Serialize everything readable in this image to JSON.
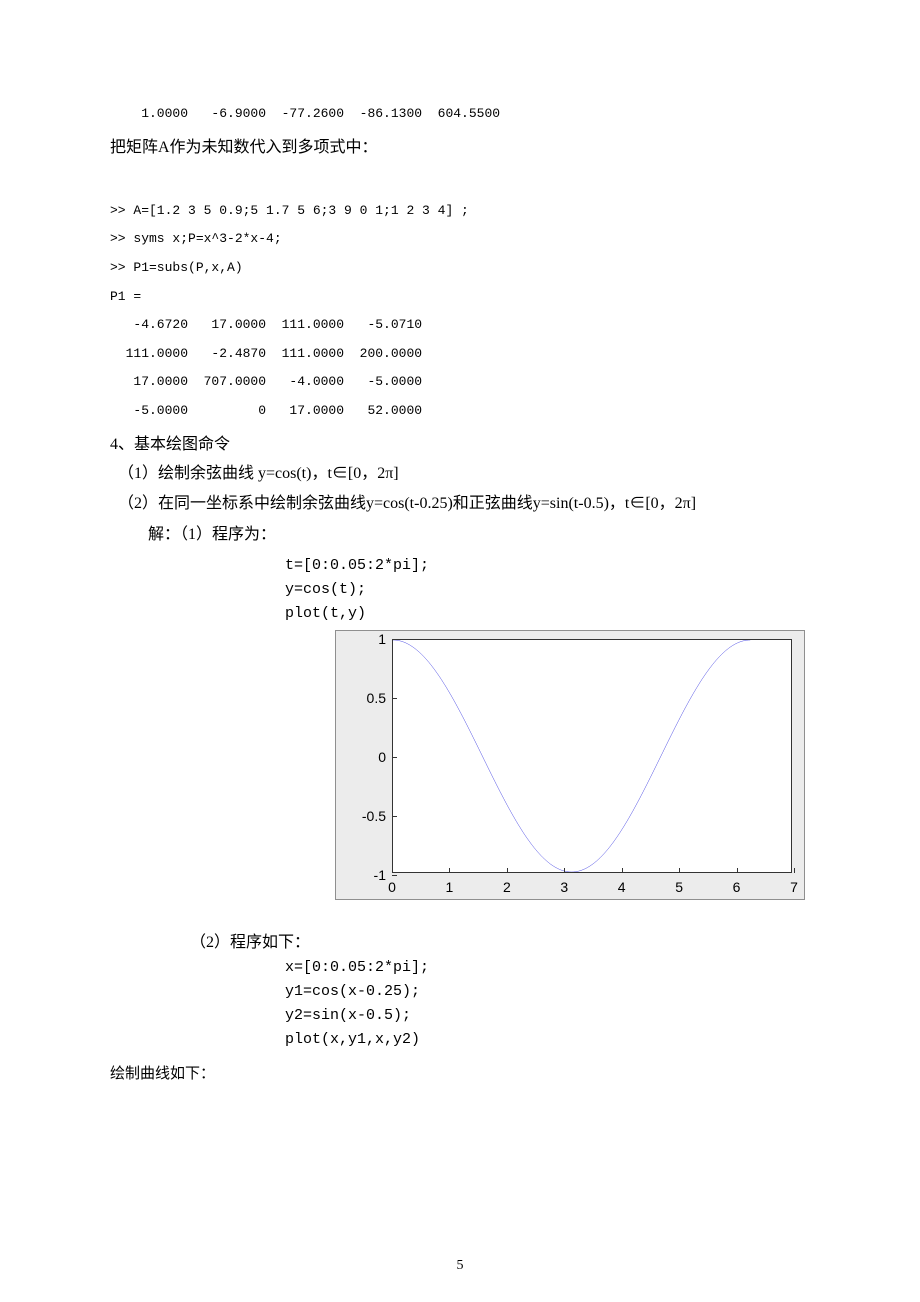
{
  "top_output": {
    "line": "    1.0000   -6.9000  -77.2600  -86.1300  604.5500"
  },
  "heading_matrix": "把矩阵A作为未知数代入到多项式中：",
  "code_block_1": {
    "l1": ">> A=[1.2 3 5 0.9;5 1.7 5 6;3 9 0 1;1 2 3 4] ;",
    "l2": ">> syms x;P=x^3-2*x-4;",
    "l3": ">> P1=subs(P,x,A)",
    "l4": "P1 =",
    "r1": "   -4.6720   17.0000  111.0000   -5.0710",
    "r2": "  111.0000   -2.4870  111.0000  200.0000",
    "r3": "   17.0000  707.0000   -4.0000   -5.0000",
    "r4": "   -5.0000         0   17.0000   52.0000"
  },
  "section4": {
    "title": "4、基本绘图命令",
    "item1": "（1）绘制余弦曲线  y=cos(t)，t∈[0，2π]",
    "item2": "（2）在同一坐标系中绘制余弦曲线y=cos(t-0.25)和正弦曲线y=sin(t-0.5)，t∈[0，2π]",
    "solution_label": "解：（1）程序为：",
    "code1": {
      "l1": "t=[0:0.05:2*pi];",
      "l2": "y=cos(t);",
      "l3": "plot(t,y)"
    },
    "chart1": {
      "type": "line",
      "function": "y=cos(t)",
      "xlim": [
        0,
        7
      ],
      "ylim": [
        -1,
        1
      ],
      "xticks": [
        0,
        1,
        2,
        3,
        4,
        5,
        6,
        7
      ],
      "yticks": [
        -1,
        -0.5,
        0,
        0.5,
        1
      ],
      "ytick_labels": [
        "-1",
        "-0.5",
        "0",
        "0.5",
        "1"
      ],
      "line_color": "#1f1fdd",
      "background_inner": "#ffffff",
      "background_outer": "#ececec",
      "axis_color": "#333333",
      "tick_font_family": "Arial",
      "tick_fontsize": 14
    },
    "item2_label": "（2）程序如下：",
    "code2": {
      "l1": "x=[0:0.05:2*pi];",
      "l2": "y1=cos(x-0.25);",
      "l3": "y2=sin(x-0.5);",
      "l4": "plot(x,y1,x,y2)"
    },
    "final_note": "绘制曲线如下："
  },
  "page_number": "5"
}
